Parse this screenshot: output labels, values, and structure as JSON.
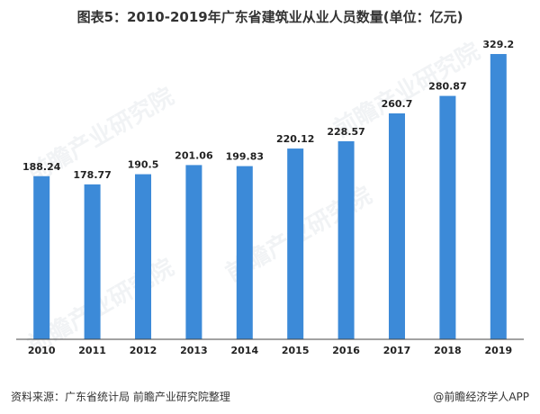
{
  "title": "图表5：2010-2019年广东省建筑业从业人员数量(单位：亿元)",
  "source": "资料来源：广东省统计局 前瞻产业研究院整理",
  "brand": "@前瞻经济学人APP",
  "watermark": "前瞻产业研究院",
  "colors": {
    "bar": "#3c8ad8",
    "axis": "#444444"
  },
  "chart_data": {
    "type": "bar",
    "categories": [
      "2010",
      "2011",
      "2012",
      "2013",
      "2014",
      "2015",
      "2016",
      "2017",
      "2018",
      "2019"
    ],
    "values": [
      188.24,
      178.77,
      190.5,
      201.06,
      199.83,
      220.12,
      228.57,
      260.7,
      280.87,
      329.2
    ],
    "value_labels": [
      "188.24",
      "178.77",
      "190.5",
      "201.06",
      "199.83",
      "220.12",
      "228.57",
      "260.7",
      "280.87",
      "329.2"
    ],
    "ylim": [
      0,
      350
    ],
    "grid": false,
    "legend": "none"
  }
}
